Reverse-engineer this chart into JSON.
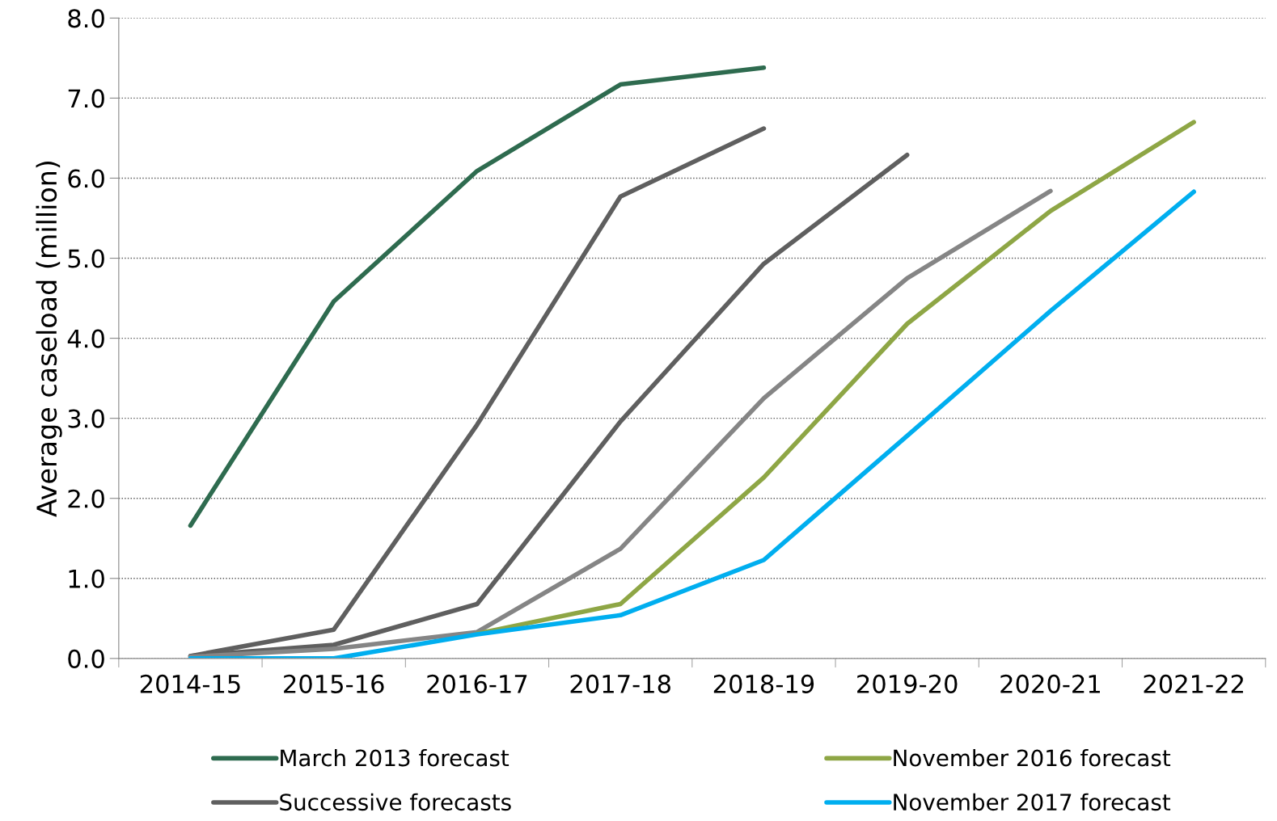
{
  "chart_data": {
    "type": "line",
    "ylabel": "Average caseload (million)",
    "categories": [
      "2014-15",
      "2015-16",
      "2016-17",
      "2017-18",
      "2018-19",
      "2019-20",
      "2020-21",
      "2021-22"
    ],
    "series": [
      {
        "name": "March 2013 forecast",
        "color": "#2e6b4f",
        "values": [
          1.66,
          4.46,
          6.09,
          7.17,
          7.38,
          null,
          null,
          null
        ]
      },
      {
        "name": "Successive forecasts",
        "color": "#5f5f5f",
        "values": [
          0.03,
          0.36,
          2.92,
          5.77,
          6.62,
          null,
          null,
          null
        ]
      },
      {
        "color": "#5f5f5f",
        "values": [
          0.03,
          0.17,
          0.68,
          2.96,
          4.93,
          6.29,
          null,
          null
        ]
      },
      {
        "color": "#858585",
        "values": [
          0.02,
          0.12,
          0.33,
          1.37,
          3.25,
          4.75,
          5.84,
          null
        ]
      },
      {
        "name": "November 2016 forecast",
        "color": "#8ea645",
        "values": [
          null,
          null,
          0.31,
          0.68,
          2.26,
          4.18,
          5.59,
          6.7
        ]
      },
      {
        "name": "November 2017 forecast",
        "color": "#00aeef",
        "values": [
          0.0,
          0.0,
          0.3,
          0.54,
          1.23,
          2.78,
          4.34,
          5.83
        ]
      }
    ],
    "ylim": [
      0,
      8
    ],
    "yticks": [
      {
        "value": 0,
        "label": "0.0"
      },
      {
        "value": 1,
        "label": "1.0"
      },
      {
        "value": 2,
        "label": "2.0"
      },
      {
        "value": 3,
        "label": "3.0"
      },
      {
        "value": 4,
        "label": "4.0"
      },
      {
        "value": 5,
        "label": "5.0"
      },
      {
        "value": 6,
        "label": "6.0"
      },
      {
        "value": 7,
        "label": "7.0"
      },
      {
        "value": 8,
        "label": "8.0"
      }
    ],
    "grid": "y",
    "legend": "bottom",
    "marker": "none",
    "line_style": "solid"
  }
}
